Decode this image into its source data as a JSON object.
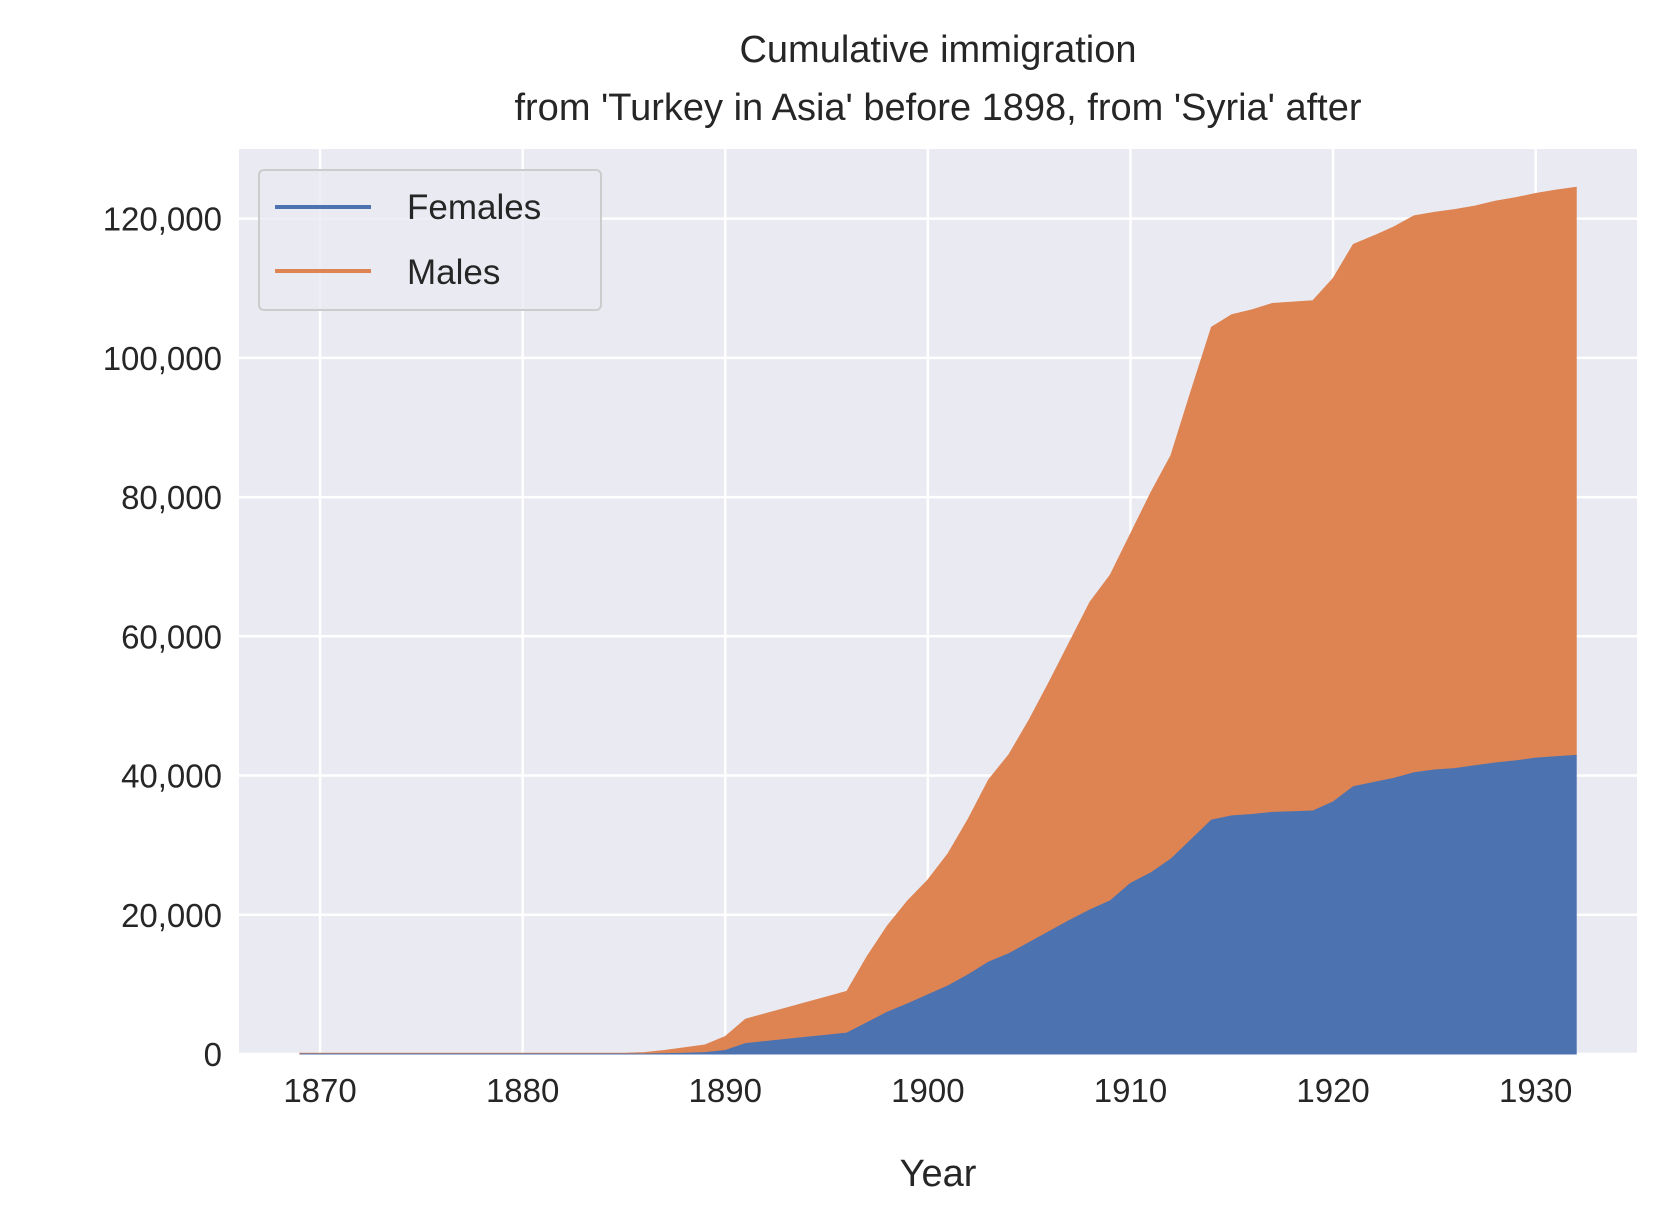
{
  "chart_data": {
    "type": "area",
    "stacked": true,
    "title_line1": "Cumulative immigration",
    "title_line2": "from 'Turkey in Asia' before 1898, from 'Syria' after",
    "xlabel": "Year",
    "ylabel": "",
    "xlim": [
      1866,
      1935
    ],
    "ylim": [
      0,
      130000
    ],
    "x_ticks": [
      1870,
      1880,
      1890,
      1900,
      1910,
      1920,
      1930
    ],
    "x_tick_labels": [
      "1870",
      "1880",
      "1890",
      "1900",
      "1910",
      "1920",
      "1930"
    ],
    "y_ticks": [
      0,
      20000,
      40000,
      60000,
      80000,
      100000,
      120000
    ],
    "y_tick_labels": [
      "0",
      "20,000",
      "40,000",
      "60,000",
      "80,000",
      "100,000",
      "120,000"
    ],
    "grid": true,
    "legend_position": "top-left",
    "x": [
      1869,
      1870,
      1871,
      1872,
      1873,
      1874,
      1875,
      1876,
      1877,
      1878,
      1879,
      1880,
      1881,
      1882,
      1883,
      1884,
      1885,
      1886,
      1887,
      1888,
      1889,
      1890,
      1891,
      1892,
      1893,
      1894,
      1895,
      1896,
      1897,
      1898,
      1899,
      1900,
      1901,
      1902,
      1903,
      1904,
      1905,
      1906,
      1907,
      1908,
      1909,
      1910,
      1911,
      1912,
      1913,
      1914,
      1915,
      1916,
      1917,
      1918,
      1919,
      1920,
      1921,
      1922,
      1923,
      1924,
      1925,
      1926,
      1927,
      1928,
      1929,
      1930,
      1931,
      1932
    ],
    "series": [
      {
        "name": "Females",
        "color": "#4c72b0",
        "values": [
          0,
          0,
          0,
          0,
          0,
          0,
          0,
          0,
          0,
          0,
          0,
          0,
          0,
          0,
          0,
          0,
          0,
          0,
          50,
          100,
          200,
          500,
          1500,
          1800,
          2100,
          2400,
          2700,
          3000,
          4500,
          6000,
          7200,
          8500,
          9800,
          11400,
          13200,
          14400,
          16000,
          17600,
          19200,
          20700,
          22000,
          24500,
          26000,
          28000,
          30800,
          33600,
          34200,
          34400,
          34700,
          34800,
          34900,
          36200,
          38400,
          39000,
          39600,
          40400,
          40800,
          41000,
          41400,
          41800,
          42100,
          42500,
          42700,
          42900
        ],
        "totals": [
          100,
          100,
          100,
          100,
          100,
          100,
          100,
          100,
          100,
          100,
          100,
          100,
          100,
          100,
          100,
          100,
          100,
          200,
          500,
          900,
          1300,
          2500,
          5000,
          5800,
          6600,
          7400,
          8200,
          9000,
          14000,
          18400,
          22000,
          25000,
          28800,
          33800,
          39400,
          43000,
          48000,
          53500,
          59200,
          64900,
          68800,
          74700,
          80600,
          86000,
          95300,
          104400,
          106200,
          106900,
          107800,
          108000,
          108200,
          111400,
          116300,
          117500,
          118800,
          120400,
          120900,
          121300,
          121800,
          122500,
          123000,
          123600,
          124100,
          124500
        ]
      },
      {
        "name": "Males",
        "color": "#dd8452"
      }
    ]
  }
}
